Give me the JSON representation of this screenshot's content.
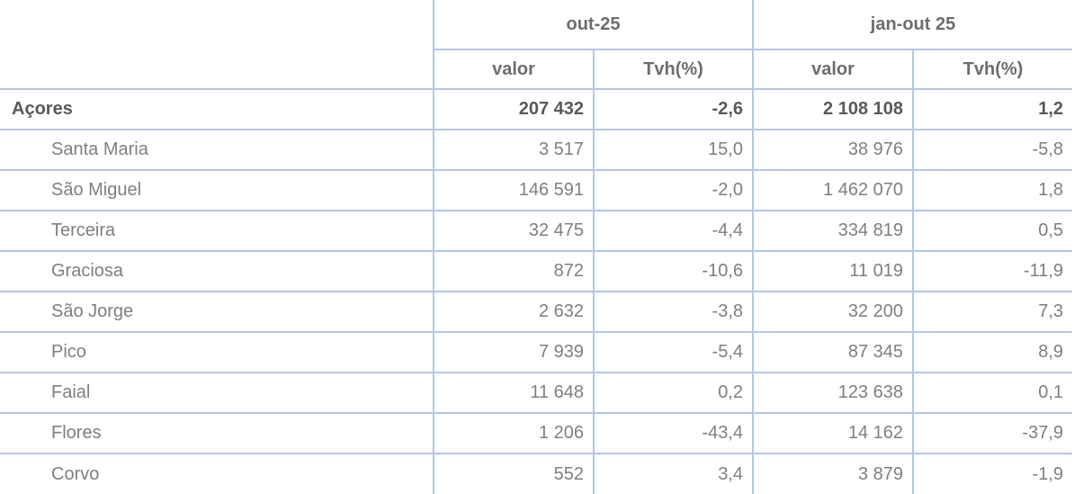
{
  "table": {
    "column_groups": [
      {
        "label": "out-25",
        "columns": [
          "valor",
          "Tvh(%)"
        ]
      },
      {
        "label": "jan-out 25",
        "columns": [
          "valor",
          "Tvh(%)"
        ]
      }
    ],
    "rows": [
      {
        "label": "Açores",
        "bold": true,
        "values": [
          "207 432",
          "-2,6",
          "2 108 108",
          "1,2"
        ]
      },
      {
        "label": "Santa Maria",
        "bold": false,
        "values": [
          "3 517",
          "15,0",
          "38 976",
          "-5,8"
        ]
      },
      {
        "label": "São Miguel",
        "bold": false,
        "values": [
          "146 591",
          "-2,0",
          "1 462 070",
          "1,8"
        ]
      },
      {
        "label": "Terceira",
        "bold": false,
        "values": [
          "32 475",
          "-4,4",
          "334 819",
          "0,5"
        ]
      },
      {
        "label": "Graciosa",
        "bold": false,
        "values": [
          "872",
          "-10,6",
          "11 019",
          "-11,9"
        ]
      },
      {
        "label": "São Jorge",
        "bold": false,
        "values": [
          "2 632",
          "-3,8",
          "32 200",
          "7,3"
        ]
      },
      {
        "label": "Pico",
        "bold": false,
        "values": [
          "7 939",
          "-5,4",
          "87 345",
          "8,9"
        ]
      },
      {
        "label": "Faial",
        "bold": false,
        "values": [
          "11 648",
          "0,2",
          "123 638",
          "0,1"
        ]
      },
      {
        "label": "Flores",
        "bold": false,
        "values": [
          "1 206",
          "-43,4",
          "14 162",
          "-37,9"
        ]
      },
      {
        "label": "Corvo",
        "bold": false,
        "values": [
          "552",
          "3,4",
          "3 879",
          "-1,9"
        ]
      }
    ],
    "colors": {
      "border": "#b4c7e7",
      "text": "#7f7f7f",
      "text_bold": "#595959",
      "header_text": "#6d6d6d"
    }
  },
  "chart_data": {
    "type": "table",
    "title": "",
    "column_groups": [
      "out-25",
      "jan-out 25"
    ],
    "columns": [
      "out-25 valor",
      "out-25 Tvh(%)",
      "jan-out 25 valor",
      "jan-out 25 Tvh(%)"
    ],
    "rows": [
      [
        "Açores",
        207432,
        -2.6,
        2108108,
        1.2
      ],
      [
        "Santa Maria",
        3517,
        15.0,
        38976,
        -5.8
      ],
      [
        "São Miguel",
        146591,
        -2.0,
        1462070,
        1.8
      ],
      [
        "Terceira",
        32475,
        -4.4,
        334819,
        0.5
      ],
      [
        "Graciosa",
        872,
        -10.6,
        11019,
        -11.9
      ],
      [
        "São Jorge",
        2632,
        -3.8,
        32200,
        7.3
      ],
      [
        "Pico",
        7939,
        -5.4,
        87345,
        8.9
      ],
      [
        "Faial",
        11648,
        0.2,
        123638,
        0.1
      ],
      [
        "Flores",
        1206,
        -43.4,
        14162,
        -37.9
      ],
      [
        "Corvo",
        552,
        3.4,
        3879,
        -1.9
      ]
    ]
  }
}
